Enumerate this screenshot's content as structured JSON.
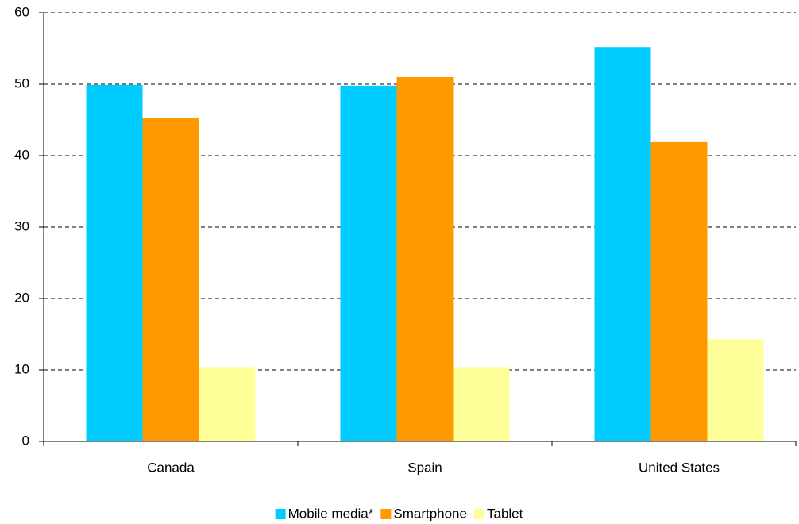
{
  "chart_data": {
    "type": "bar",
    "categories": [
      "Canada",
      "Spain",
      "United States"
    ],
    "series": [
      {
        "name": "Mobile media*",
        "color": "#00ccff",
        "values": [
          49.9,
          49.8,
          55.2
        ]
      },
      {
        "name": "Smartphone",
        "color": "#ff9900",
        "values": [
          45.3,
          51,
          41.9
        ]
      },
      {
        "name": "Tablet",
        "color": "#ffff99",
        "values": [
          10.4,
          10.4,
          14.3
        ]
      }
    ],
    "ylim": [
      0,
      60
    ],
    "yticks": [
      0,
      10,
      20,
      30,
      40,
      50,
      60
    ],
    "grid": true,
    "legend": "bottom"
  }
}
